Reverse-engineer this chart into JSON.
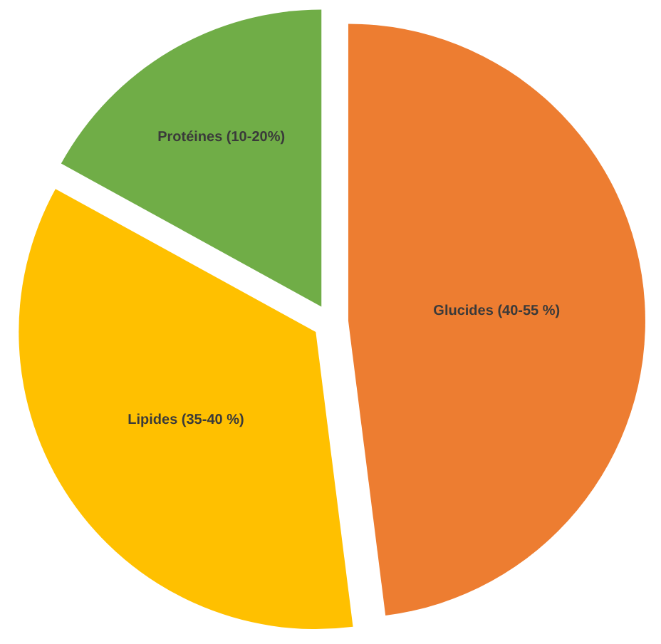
{
  "chart_data": {
    "type": "pie",
    "categories": [
      "Glucides (40-55 %)",
      "Lipides (35-40 %)",
      "Protéines (10-20%)"
    ],
    "values": [
      48,
      35,
      17
    ],
    "colors": [
      "#ed7d31",
      "#ffc000",
      "#70ad47"
    ]
  }
}
